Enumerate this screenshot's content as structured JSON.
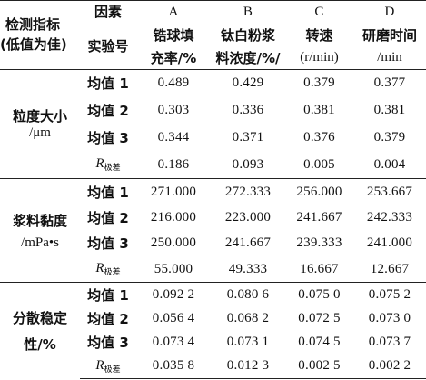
{
  "header": {
    "factor_label": "因素",
    "indicator_line1": "检测指标",
    "indicator_line2": "(低值为佳)",
    "experiment_label": "实验号",
    "columns": [
      {
        "letter": "A",
        "name_line1": "锆球填",
        "name_line2": "充率/%"
      },
      {
        "letter": "B",
        "name_line1": "钛白粉浆",
        "name_line2": "料浓度/%/"
      },
      {
        "letter": "C",
        "name_line1": "转速",
        "name_line2": "(r/min)"
      },
      {
        "letter": "D",
        "name_line1": "研磨时间",
        "name_line2": "/min"
      }
    ]
  },
  "groups": [
    {
      "name_line1": "粒度大小",
      "name_line2": "/μm",
      "rows": [
        {
          "stat": "均值 1",
          "values": [
            "0.489",
            "0.429",
            "0.379",
            "0.377"
          ]
        },
        {
          "stat": "均值 2",
          "values": [
            "0.303",
            "0.336",
            "0.381",
            "0.381"
          ]
        },
        {
          "stat": "均值 3",
          "values": [
            "0.344",
            "0.371",
            "0.376",
            "0.379"
          ]
        },
        {
          "stat_main": "R",
          "stat_sub": "极差",
          "values": [
            "0.186",
            "0.093",
            "0.005",
            "0.004"
          ]
        }
      ]
    },
    {
      "name_line1": "浆料黏度",
      "name_line2": "/mPa•s",
      "rows": [
        {
          "stat": "均值 1",
          "values": [
            "271.000",
            "272.333",
            "256.000",
            "253.667"
          ]
        },
        {
          "stat": "均值 2",
          "values": [
            "216.000",
            "223.000",
            "241.667",
            "242.333"
          ]
        },
        {
          "stat": "均值 3",
          "values": [
            "250.000",
            "241.667",
            "239.333",
            "241.000"
          ]
        },
        {
          "stat_main": "R",
          "stat_sub": "极差",
          "values": [
            "55.000",
            "49.333",
            "16.667",
            "12.667"
          ]
        }
      ]
    },
    {
      "name_line1": "分散稳定",
      "name_line2": "性/%",
      "rows": [
        {
          "stat": "均值 1",
          "values": [
            "0.092 2",
            "0.080 6",
            "0.075 0",
            "0.075 2"
          ]
        },
        {
          "stat": "均值 2",
          "values": [
            "0.056 4",
            "0.068 2",
            "0.072 5",
            "0.073 0"
          ]
        },
        {
          "stat": "均值 3",
          "values": [
            "0.073 4",
            "0.073 1",
            "0.074 5",
            "0.073 7"
          ]
        },
        {
          "stat_main": "R",
          "stat_sub": "极差",
          "values": [
            "0.035 8",
            "0.012 3",
            "0.002 5",
            "0.002 2"
          ]
        }
      ]
    }
  ]
}
